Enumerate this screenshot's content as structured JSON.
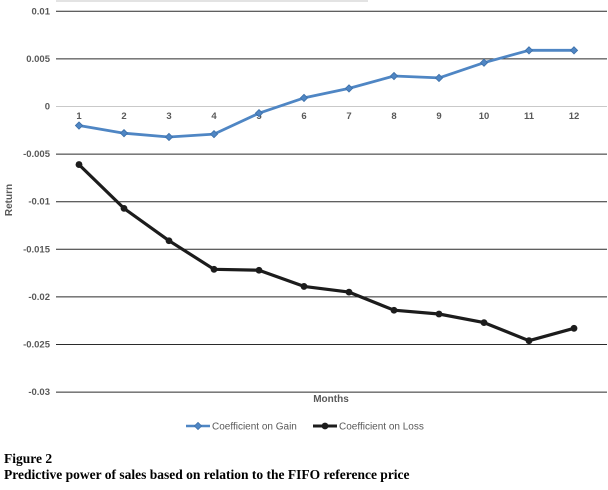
{
  "colors": {
    "gain_line": "#4F86C4",
    "gain_marker_stroke": "#3C6FA8",
    "loss_line": "#1C1C1C",
    "gridline": "#2B2B2B",
    "zero_line": "#C9C9C9",
    "tick_text": "#595959",
    "axis_title_text": "#595959",
    "legend_text": "#595959",
    "top_artifact": "#DCDCDC"
  },
  "chart_data": {
    "type": "line",
    "x": [
      1,
      2,
      3,
      4,
      5,
      6,
      7,
      8,
      9,
      10,
      11,
      12
    ],
    "series": [
      {
        "name": "Coefficient on Gain",
        "color": "#4F86C4",
        "marker": "diamond",
        "values": [
          -0.002,
          -0.0028,
          -0.0032,
          -0.0029,
          -0.0007,
          0.0009,
          0.0019,
          0.0032,
          0.003,
          0.0046,
          0.0059,
          0.0059
        ]
      },
      {
        "name": "Coefficient on Loss",
        "color": "#1C1C1C",
        "marker": "circle",
        "values": [
          -0.0061,
          -0.0107,
          -0.0141,
          -0.0171,
          -0.0172,
          -0.0189,
          -0.0195,
          -0.0214,
          -0.0218,
          -0.0227,
          -0.0246,
          -0.0233
        ]
      }
    ],
    "title": "",
    "xlabel": "Months",
    "ylabel": "Return",
    "ylim": [
      -0.03,
      0.01
    ],
    "yticks": [
      0.01,
      0.005,
      0,
      -0.005,
      -0.01,
      -0.015,
      -0.02,
      -0.025,
      -0.03
    ],
    "ytick_labels": [
      "0.01",
      "0.005",
      "0",
      "-0.005",
      "-0.01",
      "-0.015",
      "-0.02",
      "-0.025",
      "-0.03"
    ],
    "grid": true,
    "legend_position": "bottom"
  },
  "caption": {
    "line1": "Figure 2",
    "line2": "Predictive power of sales based on relation to the FIFO reference price"
  }
}
